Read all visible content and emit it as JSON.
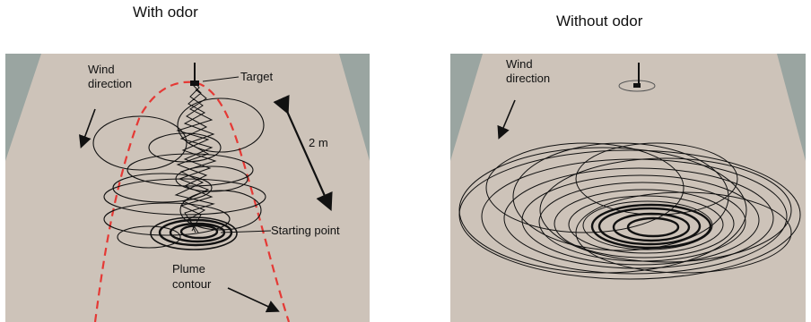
{
  "figure": {
    "left_panel": {
      "title": "With odor",
      "labels": {
        "wind_line1": "Wind",
        "wind_line2": "direction",
        "target": "Target",
        "distance": "2 m",
        "start": "Starting point",
        "plume_line1": "Plume",
        "plume_line2": "contour"
      }
    },
    "right_panel": {
      "title": "Without odor",
      "labels": {
        "wind_line1": "Wind",
        "wind_line2": "direction"
      }
    },
    "colors": {
      "floor": "#cdc3b9",
      "wall": "#9aa5a1",
      "track": "#111111",
      "plume": "#e53935"
    }
  }
}
